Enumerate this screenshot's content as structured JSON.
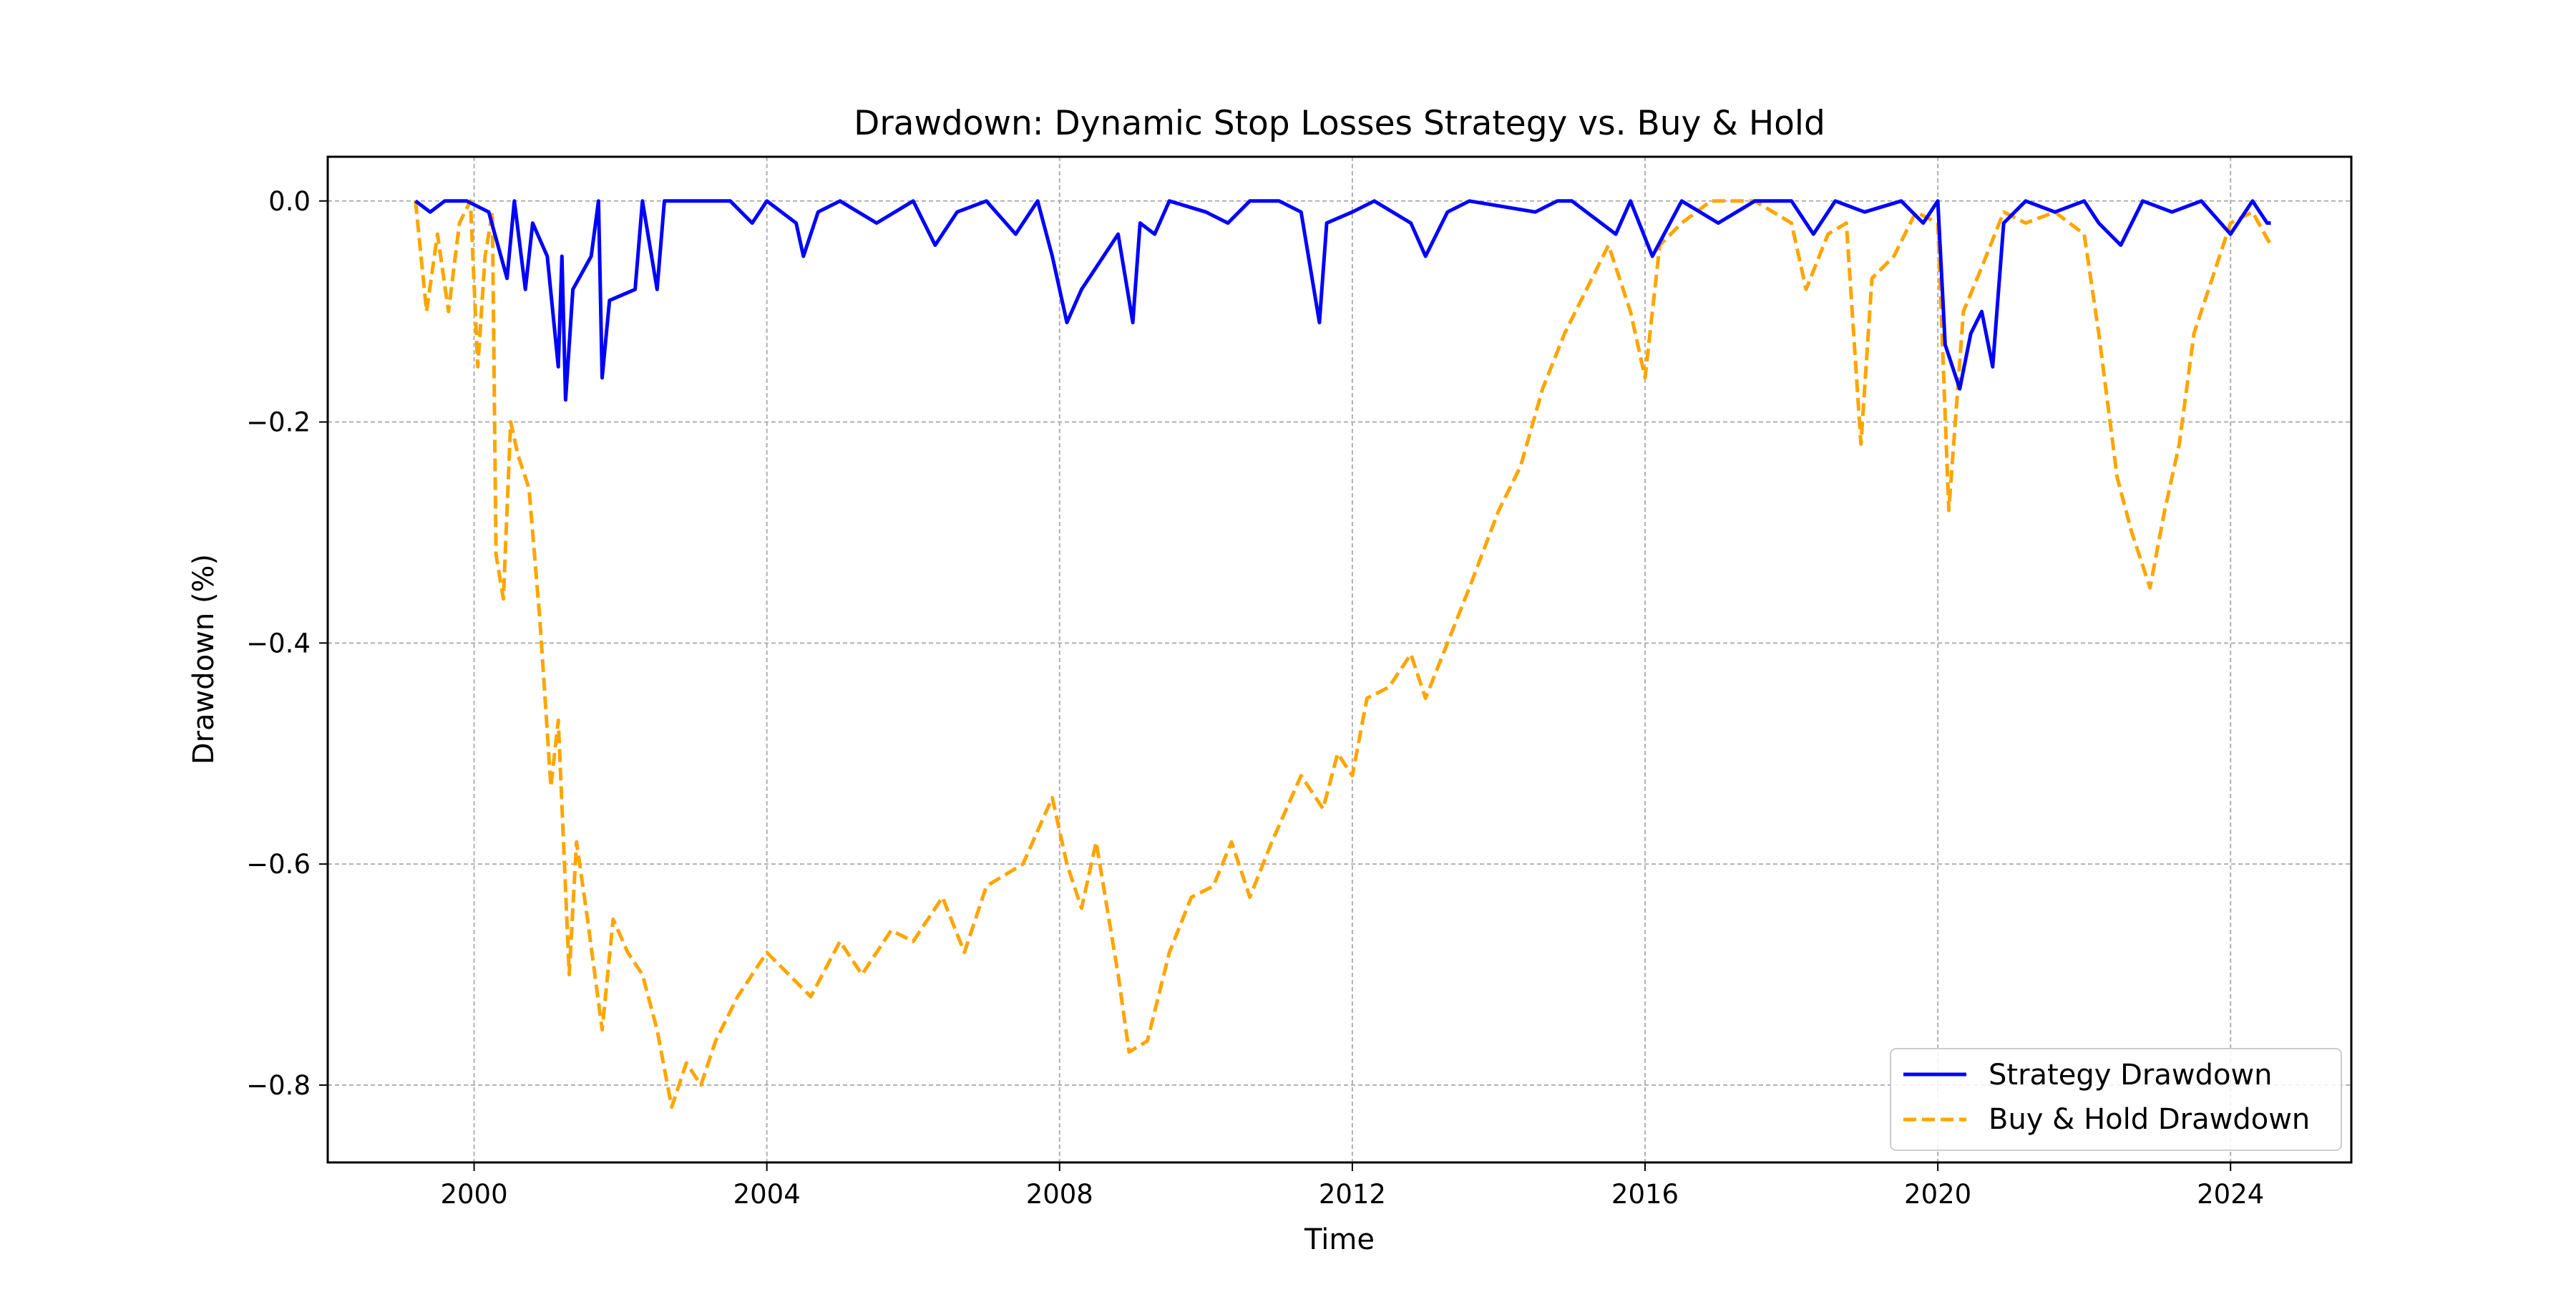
{
  "chart_data": {
    "type": "line",
    "title": "Drawdown: Dynamic Stop Losses Strategy vs. Buy & Hold",
    "xlabel": "Time",
    "ylabel": "Drawdown (%)",
    "xlim": [
      1998.0,
      2025.65
    ],
    "ylim": [
      -0.87,
      0.04
    ],
    "x_ticks": [
      2000,
      2004,
      2008,
      2012,
      2016,
      2020,
      2024
    ],
    "x_tick_labels": [
      "2000",
      "2004",
      "2008",
      "2012",
      "2016",
      "2020",
      "2024"
    ],
    "y_ticks": [
      0.0,
      -0.2,
      -0.4,
      -0.6,
      -0.8
    ],
    "y_tick_labels": [
      "0.0",
      "−0.2",
      "−0.4",
      "−0.6",
      "−0.8"
    ],
    "grid": true,
    "legend_position": "lower-right",
    "series": [
      {
        "name": "Strategy Drawdown",
        "color": "#0000ff",
        "style": "solid",
        "points": [
          [
            1999.2,
            0.0
          ],
          [
            1999.4,
            -0.01
          ],
          [
            1999.6,
            0.0
          ],
          [
            1999.9,
            0.0
          ],
          [
            2000.2,
            -0.01
          ],
          [
            2000.45,
            -0.07
          ],
          [
            2000.55,
            0.0
          ],
          [
            2000.7,
            -0.08
          ],
          [
            2000.8,
            -0.02
          ],
          [
            2001.0,
            -0.05
          ],
          [
            2001.15,
            -0.15
          ],
          [
            2001.2,
            -0.05
          ],
          [
            2001.25,
            -0.18
          ],
          [
            2001.35,
            -0.08
          ],
          [
            2001.6,
            -0.05
          ],
          [
            2001.7,
            0.0
          ],
          [
            2001.75,
            -0.16
          ],
          [
            2001.85,
            -0.09
          ],
          [
            2002.2,
            -0.08
          ],
          [
            2002.3,
            0.0
          ],
          [
            2002.5,
            -0.08
          ],
          [
            2002.6,
            0.0
          ],
          [
            2003.0,
            0.0
          ],
          [
            2003.5,
            0.0
          ],
          [
            2003.8,
            -0.02
          ],
          [
            2004.0,
            0.0
          ],
          [
            2004.4,
            -0.02
          ],
          [
            2004.5,
            -0.05
          ],
          [
            2004.7,
            -0.01
          ],
          [
            2005.0,
            0.0
          ],
          [
            2005.5,
            -0.02
          ],
          [
            2006.0,
            0.0
          ],
          [
            2006.3,
            -0.04
          ],
          [
            2006.6,
            -0.01
          ],
          [
            2007.0,
            0.0
          ],
          [
            2007.4,
            -0.03
          ],
          [
            2007.7,
            0.0
          ],
          [
            2007.9,
            -0.05
          ],
          [
            2008.1,
            -0.11
          ],
          [
            2008.3,
            -0.08
          ],
          [
            2008.6,
            -0.05
          ],
          [
            2008.8,
            -0.03
          ],
          [
            2009.0,
            -0.11
          ],
          [
            2009.1,
            -0.02
          ],
          [
            2009.3,
            -0.03
          ],
          [
            2009.5,
            0.0
          ],
          [
            2010.0,
            -0.01
          ],
          [
            2010.3,
            -0.02
          ],
          [
            2010.6,
            0.0
          ],
          [
            2011.0,
            0.0
          ],
          [
            2011.3,
            -0.01
          ],
          [
            2011.55,
            -0.11
          ],
          [
            2011.65,
            -0.02
          ],
          [
            2012.0,
            -0.01
          ],
          [
            2012.3,
            0.0
          ],
          [
            2012.8,
            -0.02
          ],
          [
            2013.0,
            -0.05
          ],
          [
            2013.3,
            -0.01
          ],
          [
            2013.6,
            0.0
          ],
          [
            2014.5,
            -0.01
          ],
          [
            2014.8,
            0.0
          ],
          [
            2015.0,
            0.0
          ],
          [
            2015.6,
            -0.03
          ],
          [
            2015.8,
            0.0
          ],
          [
            2016.1,
            -0.05
          ],
          [
            2016.5,
            0.0
          ],
          [
            2017.0,
            -0.02
          ],
          [
            2017.5,
            0.0
          ],
          [
            2018.0,
            0.0
          ],
          [
            2018.3,
            -0.03
          ],
          [
            2018.6,
            0.0
          ],
          [
            2019.0,
            -0.01
          ],
          [
            2019.5,
            0.0
          ],
          [
            2019.8,
            -0.02
          ],
          [
            2020.0,
            0.0
          ],
          [
            2020.1,
            -0.13
          ],
          [
            2020.3,
            -0.17
          ],
          [
            2020.45,
            -0.12
          ],
          [
            2020.6,
            -0.1
          ],
          [
            2020.75,
            -0.15
          ],
          [
            2020.9,
            -0.02
          ],
          [
            2021.2,
            0.0
          ],
          [
            2021.6,
            -0.01
          ],
          [
            2022.0,
            0.0
          ],
          [
            2022.2,
            -0.02
          ],
          [
            2022.5,
            -0.04
          ],
          [
            2022.8,
            0.0
          ],
          [
            2023.2,
            -0.01
          ],
          [
            2023.6,
            0.0
          ],
          [
            2024.0,
            -0.03
          ],
          [
            2024.3,
            0.0
          ],
          [
            2024.5,
            -0.02
          ],
          [
            2024.55,
            -0.02
          ]
        ]
      },
      {
        "name": "Buy & Hold Drawdown",
        "color": "#ffa500",
        "style": "dashed",
        "points": [
          [
            1999.2,
            0.0
          ],
          [
            1999.35,
            -0.1
          ],
          [
            1999.5,
            -0.03
          ],
          [
            1999.65,
            -0.1
          ],
          [
            1999.8,
            -0.02
          ],
          [
            1999.95,
            0.0
          ],
          [
            2000.05,
            -0.15
          ],
          [
            2000.15,
            -0.05
          ],
          [
            2000.25,
            -0.01
          ],
          [
            2000.3,
            -0.32
          ],
          [
            2000.4,
            -0.36
          ],
          [
            2000.5,
            -0.2
          ],
          [
            2000.6,
            -0.23
          ],
          [
            2000.75,
            -0.26
          ],
          [
            2000.9,
            -0.38
          ],
          [
            2001.05,
            -0.53
          ],
          [
            2001.15,
            -0.47
          ],
          [
            2001.3,
            -0.7
          ],
          [
            2001.4,
            -0.58
          ],
          [
            2001.55,
            -0.65
          ],
          [
            2001.75,
            -0.75
          ],
          [
            2001.9,
            -0.65
          ],
          [
            2002.1,
            -0.68
          ],
          [
            2002.3,
            -0.7
          ],
          [
            2002.5,
            -0.75
          ],
          [
            2002.7,
            -0.82
          ],
          [
            2002.9,
            -0.78
          ],
          [
            2003.1,
            -0.8
          ],
          [
            2003.3,
            -0.76
          ],
          [
            2003.6,
            -0.72
          ],
          [
            2004.0,
            -0.68
          ],
          [
            2004.3,
            -0.7
          ],
          [
            2004.6,
            -0.72
          ],
          [
            2005.0,
            -0.67
          ],
          [
            2005.3,
            -0.7
          ],
          [
            2005.7,
            -0.66
          ],
          [
            2006.0,
            -0.67
          ],
          [
            2006.4,
            -0.63
          ],
          [
            2006.7,
            -0.68
          ],
          [
            2007.0,
            -0.62
          ],
          [
            2007.5,
            -0.6
          ],
          [
            2007.9,
            -0.54
          ],
          [
            2008.1,
            -0.6
          ],
          [
            2008.3,
            -0.64
          ],
          [
            2008.5,
            -0.58
          ],
          [
            2008.8,
            -0.7
          ],
          [
            2008.95,
            -0.77
          ],
          [
            2009.2,
            -0.76
          ],
          [
            2009.5,
            -0.68
          ],
          [
            2009.8,
            -0.63
          ],
          [
            2010.1,
            -0.62
          ],
          [
            2010.35,
            -0.58
          ],
          [
            2010.6,
            -0.63
          ],
          [
            2010.9,
            -0.58
          ],
          [
            2011.3,
            -0.52
          ],
          [
            2011.6,
            -0.55
          ],
          [
            2011.8,
            -0.5
          ],
          [
            2012.0,
            -0.52
          ],
          [
            2012.2,
            -0.45
          ],
          [
            2012.5,
            -0.44
          ],
          [
            2012.8,
            -0.41
          ],
          [
            2013.0,
            -0.45
          ],
          [
            2013.3,
            -0.4
          ],
          [
            2013.6,
            -0.35
          ],
          [
            2014.0,
            -0.28
          ],
          [
            2014.3,
            -0.24
          ],
          [
            2014.6,
            -0.17
          ],
          [
            2014.9,
            -0.12
          ],
          [
            2015.2,
            -0.08
          ],
          [
            2015.5,
            -0.04
          ],
          [
            2015.8,
            -0.1
          ],
          [
            2016.0,
            -0.16
          ],
          [
            2016.2,
            -0.04
          ],
          [
            2016.5,
            -0.02
          ],
          [
            2016.9,
            0.0
          ],
          [
            2017.5,
            0.0
          ],
          [
            2018.0,
            -0.02
          ],
          [
            2018.2,
            -0.08
          ],
          [
            2018.5,
            -0.03
          ],
          [
            2018.75,
            -0.02
          ],
          [
            2018.95,
            -0.22
          ],
          [
            2019.1,
            -0.07
          ],
          [
            2019.4,
            -0.05
          ],
          [
            2019.7,
            -0.01
          ],
          [
            2020.0,
            -0.02
          ],
          [
            2020.15,
            -0.28
          ],
          [
            2020.35,
            -0.1
          ],
          [
            2020.6,
            -0.06
          ],
          [
            2020.9,
            -0.01
          ],
          [
            2021.2,
            -0.02
          ],
          [
            2021.6,
            -0.01
          ],
          [
            2022.0,
            -0.03
          ],
          [
            2022.2,
            -0.12
          ],
          [
            2022.45,
            -0.25
          ],
          [
            2022.65,
            -0.3
          ],
          [
            2022.9,
            -0.35
          ],
          [
            2023.1,
            -0.28
          ],
          [
            2023.3,
            -0.22
          ],
          [
            2023.5,
            -0.12
          ],
          [
            2023.8,
            -0.06
          ],
          [
            2024.0,
            -0.02
          ],
          [
            2024.3,
            -0.01
          ],
          [
            2024.55,
            -0.04
          ]
        ]
      }
    ]
  }
}
